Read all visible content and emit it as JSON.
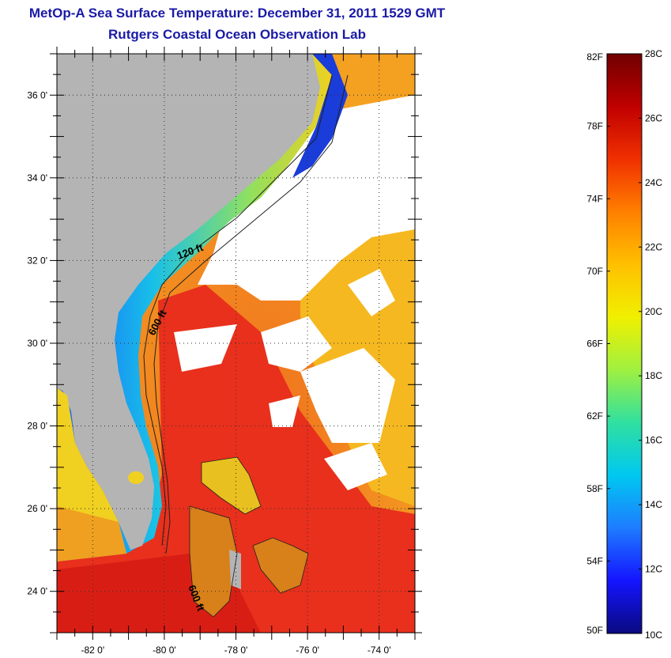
{
  "title": {
    "line1": "MetOp-A Sea Surface Temperature:  December 31, 2011 1529 GMT",
    "line2": "Rutgers Coastal Ocean Observation Lab"
  },
  "map": {
    "lat_range": [
      23,
      37
    ],
    "lon_range": [
      -83,
      -73
    ],
    "lat_ticks": [
      {
        "value": 24,
        "label": "24 0'"
      },
      {
        "value": 26,
        "label": "26 0'"
      },
      {
        "value": 28,
        "label": "28 0'"
      },
      {
        "value": 30,
        "label": "30 0'"
      },
      {
        "value": 32,
        "label": "32 0'"
      },
      {
        "value": 34,
        "label": "34 0'"
      },
      {
        "value": 36,
        "label": "36 0'"
      }
    ],
    "lon_ticks": [
      {
        "value": -82,
        "label": "-82 0'"
      },
      {
        "value": -80,
        "label": "-80 0'"
      },
      {
        "value": -78,
        "label": "-78 0'"
      },
      {
        "value": -76,
        "label": "-76 0'"
      },
      {
        "value": -74,
        "label": "-74 0'"
      }
    ],
    "contour_labels": [
      "120 ft",
      "600 ft",
      "600 ft"
    ],
    "colors": {
      "land": "#b4b4b4",
      "cloud": "#ffffff",
      "water_warm": "#e8281c",
      "water_mid": "#f07a1e",
      "water_cool": "#f5c21a",
      "nearshore": "#18b4e8"
    }
  },
  "colorbar": {
    "fahrenheit_labels": [
      "82F",
      "78F",
      "74F",
      "70F",
      "66F",
      "62F",
      "58F",
      "54F",
      "50F"
    ],
    "celsius_labels": [
      "28C",
      "26C",
      "24C",
      "22C",
      "20C",
      "18C",
      "16C",
      "14C",
      "12C",
      "10C"
    ],
    "range_c": [
      10,
      28
    ],
    "stops": [
      "#0a0a80",
      "#1414ff",
      "#1e7cff",
      "#00c8f0",
      "#30e0a0",
      "#a0f040",
      "#f0f000",
      "#ffc000",
      "#ff8000",
      "#f03000",
      "#c00000",
      "#700000"
    ]
  }
}
